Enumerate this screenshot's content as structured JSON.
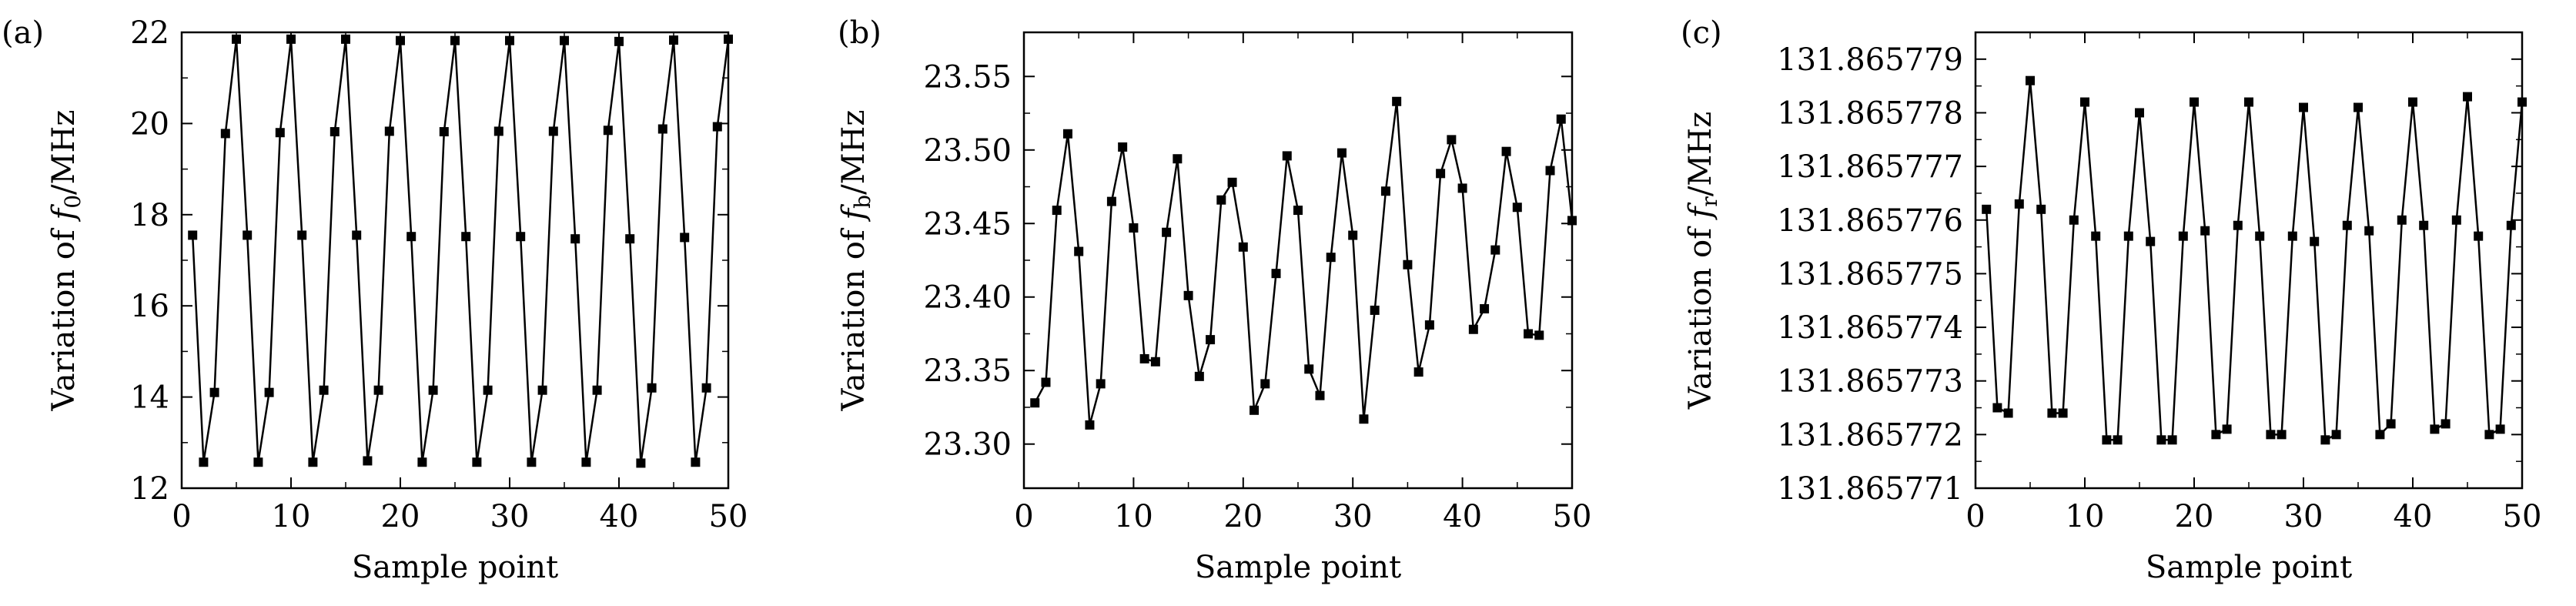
{
  "chart_data": [
    {
      "panel_label": "(a)",
      "type": "line",
      "title": "",
      "ylabel_prefix": "Variation of ",
      "ylabel_sym": "f",
      "ylabel_sub": "0",
      "ylabel_unit": "/MHz",
      "xlabel": "Sample point",
      "xlim": [
        0,
        50
      ],
      "ylim": [
        12,
        22
      ],
      "xticks": [
        0,
        10,
        20,
        30,
        40,
        50
      ],
      "yticks": [
        12,
        14,
        16,
        18,
        20,
        22
      ],
      "ytick_labels": [
        "12",
        "14",
        "16",
        "18",
        "20",
        "22"
      ],
      "x": [
        1,
        2,
        3,
        4,
        5,
        6,
        7,
        8,
        9,
        10,
        11,
        12,
        13,
        14,
        15,
        16,
        17,
        18,
        19,
        20,
        21,
        22,
        23,
        24,
        25,
        26,
        27,
        28,
        29,
        30,
        31,
        32,
        33,
        34,
        35,
        36,
        37,
        38,
        39,
        40,
        41,
        42,
        43,
        44,
        45,
        46,
        47,
        48,
        49,
        50
      ],
      "series": [
        {
          "values": [
            17.55,
            12.57,
            14.1,
            19.78,
            21.85,
            17.55,
            12.57,
            14.1,
            19.8,
            21.85,
            17.55,
            12.57,
            14.15,
            19.82,
            21.85,
            17.55,
            12.6,
            14.15,
            19.83,
            21.82,
            17.52,
            12.57,
            14.15,
            19.82,
            21.82,
            17.52,
            12.57,
            14.15,
            19.83,
            21.82,
            17.52,
            12.57,
            14.15,
            19.83,
            21.82,
            17.47,
            12.57,
            14.15,
            19.85,
            21.8,
            17.47,
            12.55,
            14.2,
            19.88,
            21.83,
            17.5,
            12.57,
            14.2,
            19.93,
            21.85
          ]
        }
      ]
    },
    {
      "panel_label": "(b)",
      "type": "line",
      "title": "",
      "ylabel_prefix": "Variation of ",
      "ylabel_sym": "f",
      "ylabel_sub": "b",
      "ylabel_unit": "/MHz",
      "xlabel": "Sample point",
      "xlim": [
        0,
        50
      ],
      "ylim": [
        23.27,
        23.58
      ],
      "xticks": [
        0,
        10,
        20,
        30,
        40,
        50
      ],
      "yticks": [
        23.3,
        23.35,
        23.4,
        23.45,
        23.5,
        23.55
      ],
      "ytick_labels": [
        "23.30",
        "23.35",
        "23.40",
        "23.45",
        "23.50",
        "23.55"
      ],
      "x": [
        1,
        2,
        3,
        4,
        5,
        6,
        7,
        8,
        9,
        10,
        11,
        12,
        13,
        14,
        15,
        16,
        17,
        18,
        19,
        20,
        21,
        22,
        23,
        24,
        25,
        26,
        27,
        28,
        29,
        30,
        31,
        32,
        33,
        34,
        35,
        36,
        37,
        38,
        39,
        40,
        41,
        42,
        43,
        44,
        45,
        46,
        47,
        48,
        49,
        50
      ],
      "series": [
        {
          "values": [
            23.328,
            23.342,
            23.459,
            23.511,
            23.431,
            23.313,
            23.341,
            23.465,
            23.502,
            23.447,
            23.358,
            23.356,
            23.444,
            23.494,
            23.401,
            23.346,
            23.371,
            23.466,
            23.478,
            23.434,
            23.323,
            23.341,
            23.416,
            23.496,
            23.459,
            23.351,
            23.333,
            23.427,
            23.498,
            23.442,
            23.317,
            23.391,
            23.472,
            23.533,
            23.422,
            23.349,
            23.381,
            23.484,
            23.507,
            23.474,
            23.378,
            23.392,
            23.432,
            23.499,
            23.461,
            23.375,
            23.374,
            23.486,
            23.521,
            23.452
          ]
        }
      ]
    },
    {
      "panel_label": "(c)",
      "type": "line",
      "title": "",
      "ylabel_prefix": "Variation of ",
      "ylabel_sym": "f",
      "ylabel_sub": "r",
      "ylabel_unit": "/MHz",
      "xlabel": "Sample point",
      "xlim": [
        0,
        50
      ],
      "ylim": [
        131.865771,
        131.8657795
      ],
      "xticks": [
        0,
        10,
        20,
        30,
        40,
        50
      ],
      "yticks": [
        131.865771,
        131.865772,
        131.865773,
        131.865774,
        131.865775,
        131.865776,
        131.865777,
        131.865778,
        131.865779
      ],
      "ytick_labels": [
        "131.865771",
        "131.865772",
        "131.865773",
        "131.865774",
        "131.865775",
        "131.865776",
        "131.865777",
        "131.865778",
        "131.865779"
      ],
      "x": [
        1,
        2,
        3,
        4,
        5,
        6,
        7,
        8,
        9,
        10,
        11,
        12,
        13,
        14,
        15,
        16,
        17,
        18,
        19,
        20,
        21,
        22,
        23,
        24,
        25,
        26,
        27,
        28,
        29,
        30,
        31,
        32,
        33,
        34,
        35,
        36,
        37,
        38,
        39,
        40,
        41,
        42,
        43,
        44,
        45,
        46,
        47,
        48,
        49,
        50
      ],
      "series": [
        {
          "values": [
            131.8657762,
            131.8657725,
            131.8657724,
            131.8657763,
            131.8657786,
            131.8657762,
            131.8657724,
            131.8657724,
            131.865776,
            131.8657782,
            131.8657757,
            131.8657719,
            131.8657719,
            131.8657757,
            131.865778,
            131.8657756,
            131.8657719,
            131.8657719,
            131.8657757,
            131.8657782,
            131.8657758,
            131.865772,
            131.8657721,
            131.8657759,
            131.8657782,
            131.8657757,
            131.865772,
            131.865772,
            131.8657757,
            131.8657781,
            131.8657756,
            131.8657719,
            131.865772,
            131.8657759,
            131.8657781,
            131.8657758,
            131.865772,
            131.8657722,
            131.865776,
            131.8657782,
            131.8657759,
            131.8657721,
            131.8657722,
            131.865776,
            131.8657783,
            131.8657757,
            131.865772,
            131.8657721,
            131.8657759,
            131.8657782
          ]
        }
      ]
    }
  ]
}
